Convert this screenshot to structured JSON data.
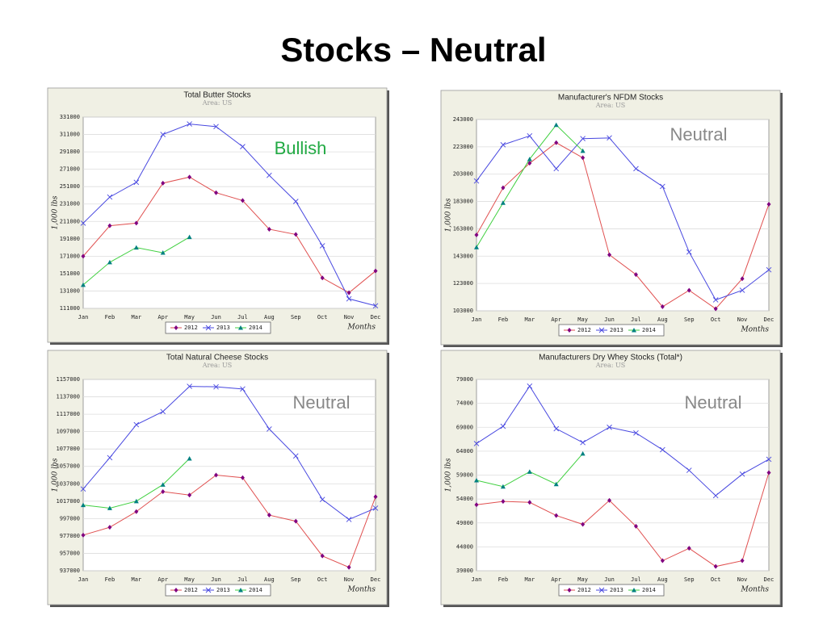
{
  "title": "Stocks – Neutral",
  "chart_data": [
    {
      "type": "line",
      "title": "Total Butter Stocks",
      "subtitle": "Area: US",
      "y_label": "1,000 lbs",
      "x_label": "Months",
      "annotation": "Bullish",
      "annotation_color": "#22aa44",
      "grid": true,
      "categories": [
        "Jan",
        "Feb",
        "Mar",
        "Apr",
        "May",
        "Jun",
        "Jul",
        "Aug",
        "Sep",
        "Oct",
        "Nov",
        "Dec"
      ],
      "ylim": [
        111000,
        331000
      ],
      "yticks": [
        111000,
        131000,
        151000,
        171000,
        191000,
        211000,
        231000,
        251000,
        271000,
        291000,
        311000,
        331000
      ],
      "series": [
        {
          "name": "2012",
          "color": "#e05050",
          "marker": "diamond",
          "marker_color": "#800080",
          "values": [
            171000,
            206000,
            209000,
            255000,
            262000,
            244000,
            235000,
            202000,
            196000,
            146000,
            129000,
            154000
          ]
        },
        {
          "name": "2013",
          "color": "#4848e0",
          "marker": "x",
          "marker_color": "#4848e0",
          "values": [
            209000,
            239000,
            256000,
            311000,
            323000,
            320000,
            297000,
            264000,
            234000,
            183000,
            122000,
            114000
          ]
        },
        {
          "name": "2014",
          "color": "#40d040",
          "marker": "triangle",
          "marker_color": "#008080",
          "values": [
            138000,
            164000,
            181000,
            175000,
            193000,
            null,
            null,
            null,
            null,
            null,
            null,
            null
          ]
        }
      ]
    },
    {
      "type": "line",
      "title": "Manufacturer's NFDM Stocks",
      "subtitle": "Area: US",
      "y_label": "1,000 lbs",
      "x_label": "Months",
      "annotation": "Neutral",
      "annotation_color": "#888888",
      "grid": true,
      "categories": [
        "Jan",
        "Feb",
        "Mar",
        "Apr",
        "May",
        "Jun",
        "Jul",
        "Aug",
        "Sep",
        "Oct",
        "Nov",
        "Dec"
      ],
      "ylim": [
        103000,
        243000
      ],
      "yticks": [
        103000,
        123000,
        143000,
        163000,
        183000,
        203000,
        223000,
        243000
      ],
      "series": [
        {
          "name": "2012",
          "color": "#e05050",
          "marker": "diamond",
          "marker_color": "#800080",
          "values": [
            158500,
            193000,
            211000,
            226000,
            215000,
            144000,
            129500,
            106000,
            118000,
            104500,
            126500,
            181000
          ]
        },
        {
          "name": "2013",
          "color": "#4848e0",
          "marker": "x",
          "marker_color": "#4848e0",
          "values": [
            198000,
            224500,
            231000,
            207000,
            229000,
            229500,
            207000,
            194000,
            146000,
            111000,
            118000,
            133000
          ]
        },
        {
          "name": "2014",
          "color": "#40d040",
          "marker": "triangle",
          "marker_color": "#008080",
          "values": [
            149500,
            182000,
            214000,
            239000,
            220000,
            null,
            null,
            null,
            null,
            null,
            null,
            null
          ]
        }
      ]
    },
    {
      "type": "line",
      "title": "Total Natural Cheese Stocks",
      "subtitle": "Area: US",
      "y_label": "1,000 lbs",
      "x_label": "Months",
      "annotation": "Neutral",
      "annotation_color": "#888888",
      "grid": true,
      "categories": [
        "Jan",
        "Feb",
        "Mar",
        "Apr",
        "May",
        "Jun",
        "Jul",
        "Aug",
        "Sep",
        "Oct",
        "Nov",
        "Dec"
      ],
      "ylim": [
        937000,
        1157000
      ],
      "yticks": [
        937000,
        957000,
        977000,
        997000,
        1017000,
        1037000,
        1057000,
        1077000,
        1097000,
        1117000,
        1137000,
        1157000
      ],
      "series": [
        {
          "name": "2012",
          "color": "#e05050",
          "marker": "diamond",
          "marker_color": "#800080",
          "values": [
            978000,
            987000,
            1005000,
            1028000,
            1024000,
            1047000,
            1044000,
            1001000,
            994000,
            954000,
            941000,
            1022000
          ]
        },
        {
          "name": "2013",
          "color": "#4848e0",
          "marker": "x",
          "marker_color": "#4848e0",
          "values": [
            1031000,
            1067000,
            1105000,
            1120000,
            1149000,
            1148500,
            1146000,
            1100000,
            1069000,
            1019000,
            996000,
            1009000
          ]
        },
        {
          "name": "2014",
          "color": "#40d040",
          "marker": "triangle",
          "marker_color": "#008080",
          "values": [
            1012500,
            1009000,
            1017000,
            1036000,
            1066000,
            null,
            null,
            null,
            null,
            null,
            null,
            null
          ]
        }
      ]
    },
    {
      "type": "line",
      "title": "Manufacturers Dry Whey Stocks (Total*)",
      "subtitle": "Area: US",
      "y_label": "1,000 lbs",
      "x_label": "Months",
      "annotation": "Neutral",
      "annotation_color": "#888888",
      "grid": true,
      "categories": [
        "Jan",
        "Feb",
        "Mar",
        "Apr",
        "May",
        "Jun",
        "Jul",
        "Aug",
        "Sep",
        "Oct",
        "Nov",
        "Dec"
      ],
      "ylim": [
        39000,
        79000
      ],
      "yticks": [
        39000,
        44000,
        49000,
        54000,
        59000,
        64000,
        69000,
        74000,
        79000
      ],
      "series": [
        {
          "name": "2012",
          "color": "#e05050",
          "marker": "diamond",
          "marker_color": "#800080",
          "values": [
            52800,
            53500,
            53300,
            50550,
            48700,
            53700,
            48300,
            41100,
            43700,
            39900,
            41100,
            59500
          ]
        },
        {
          "name": "2013",
          "color": "#4848e0",
          "marker": "x",
          "marker_color": "#4848e0",
          "values": [
            65600,
            69200,
            77600,
            68700,
            65800,
            69000,
            67800,
            64300,
            60000,
            54700,
            59200,
            62300
          ]
        },
        {
          "name": "2014",
          "color": "#40d040",
          "marker": "triangle",
          "marker_color": "#008080",
          "values": [
            57900,
            56600,
            59700,
            57100,
            63500,
            null,
            null,
            null,
            null,
            null,
            null,
            null
          ]
        }
      ]
    }
  ]
}
